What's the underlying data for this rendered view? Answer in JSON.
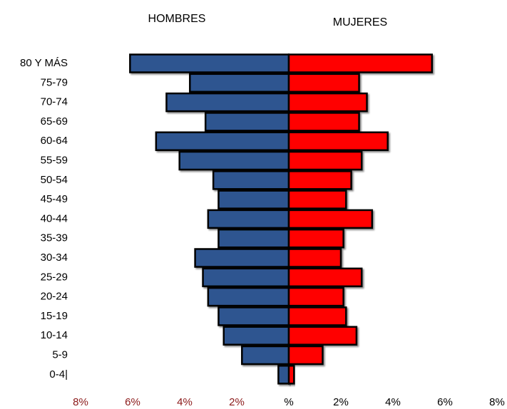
{
  "chart_data": {
    "type": "pyramid",
    "categories": [
      "80 Y MÁS",
      "75-79",
      "70-74",
      "65-69",
      "60-64",
      "55-59",
      "50-54",
      "45-49",
      "40-44",
      "35-39",
      "30-34",
      "25-29",
      "20-24",
      "15-19",
      "10-14",
      "5-9",
      "0-4|"
    ],
    "series": [
      {
        "name": "HOMBRES",
        "color": "#2e5490",
        "values": [
          6.1,
          3.8,
          4.7,
          3.2,
          5.1,
          4.2,
          2.9,
          2.7,
          3.1,
          2.7,
          3.6,
          3.3,
          3.1,
          2.7,
          2.5,
          1.8,
          0.4
        ]
      },
      {
        "name": "MUJERES",
        "color": "#ff0000",
        "values": [
          5.5,
          2.7,
          3.0,
          2.7,
          3.8,
          2.8,
          2.4,
          2.2,
          3.2,
          2.1,
          2.0,
          2.8,
          2.1,
          2.2,
          2.6,
          1.3,
          0.2
        ]
      }
    ],
    "xlim": [
      -8,
      8
    ],
    "xticks": [
      {
        "value": -8,
        "label": "8%"
      },
      {
        "value": -6,
        "label": "6%"
      },
      {
        "value": -4,
        "label": "4%"
      },
      {
        "value": -2,
        "label": "2%"
      },
      {
        "value": 0,
        "label": "%"
      },
      {
        "value": 2,
        "label": "2%"
      },
      {
        "value": 4,
        "label": "4%"
      },
      {
        "value": 6,
        "label": "6%"
      },
      {
        "value": 8,
        "label": "8%"
      }
    ]
  }
}
